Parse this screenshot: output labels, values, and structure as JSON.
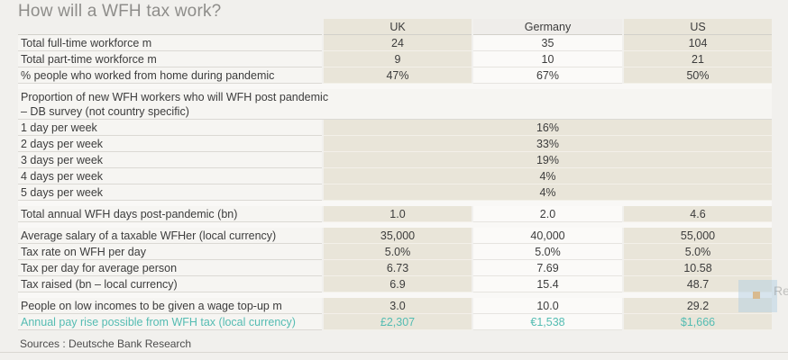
{
  "page": {
    "background": "#f1f0ed"
  },
  "chart_data": {
    "type": "table",
    "title": "How will a WFH tax work?",
    "columns": [
      "UK",
      "Germany",
      "US"
    ],
    "rows": [
      {
        "kind": "data",
        "label": "Total full-time workforce m",
        "values": [
          "24",
          "35",
          "104"
        ]
      },
      {
        "kind": "data",
        "label": "Total part-time workforce m",
        "values": [
          "9",
          "10",
          "21"
        ]
      },
      {
        "kind": "data",
        "label": "% people who worked from home during pandemic",
        "values": [
          "47%",
          "67%",
          "50%"
        ]
      },
      {
        "kind": "spacer"
      },
      {
        "kind": "section",
        "label": "Proportion of new WFH workers who will WFH post pandemic – DB survey (not country specific)"
      },
      {
        "kind": "merged",
        "label": "1 day per week",
        "value": "16%"
      },
      {
        "kind": "merged",
        "label": "2 days per week",
        "value": "33%"
      },
      {
        "kind": "merged",
        "label": "3 days per week",
        "value": "19%"
      },
      {
        "kind": "merged",
        "label": "4 days per week",
        "value": "4%"
      },
      {
        "kind": "merged",
        "label": "5 days per week",
        "value": "4%"
      },
      {
        "kind": "spacer"
      },
      {
        "kind": "data",
        "label": "Total annual WFH days post-pandemic (bn)",
        "values": [
          "1.0",
          "2.0",
          "4.6"
        ]
      },
      {
        "kind": "spacer"
      },
      {
        "kind": "data",
        "label": "Average salary of a taxable WFHer (local currency)",
        "values": [
          "35,000",
          "40,000",
          "55,000"
        ]
      },
      {
        "kind": "data",
        "label": "Tax rate on WFH per day",
        "values": [
          "5.0%",
          "5.0%",
          "5.0%"
        ]
      },
      {
        "kind": "data",
        "label": "Tax per day for average person",
        "values": [
          "6.73",
          "7.69",
          "10.58"
        ]
      },
      {
        "kind": "data",
        "label": "Tax raised (bn – local currency)",
        "values": [
          "6.9",
          "15.4",
          "48.7"
        ]
      },
      {
        "kind": "spacer"
      },
      {
        "kind": "data",
        "label": "People on low incomes to be given a wage top-up m",
        "values": [
          "3.0",
          "10.0",
          "29.2"
        ]
      },
      {
        "kind": "data",
        "accent": true,
        "label": "Annual pay rise possible from WFH tax (local currency)",
        "values": [
          "£2,307",
          "€1,538",
          "$1,666"
        ]
      }
    ]
  },
  "footer": {
    "sources": "Sources : Deutsche Bank Research"
  },
  "watermark": {
    "letters": "Re"
  },
  "colors": {
    "accent_teal": "#54bcb2",
    "column_beige": "#e9e5d9",
    "column_white": "#fbfaf8",
    "title_gray": "#8e8d8a"
  }
}
